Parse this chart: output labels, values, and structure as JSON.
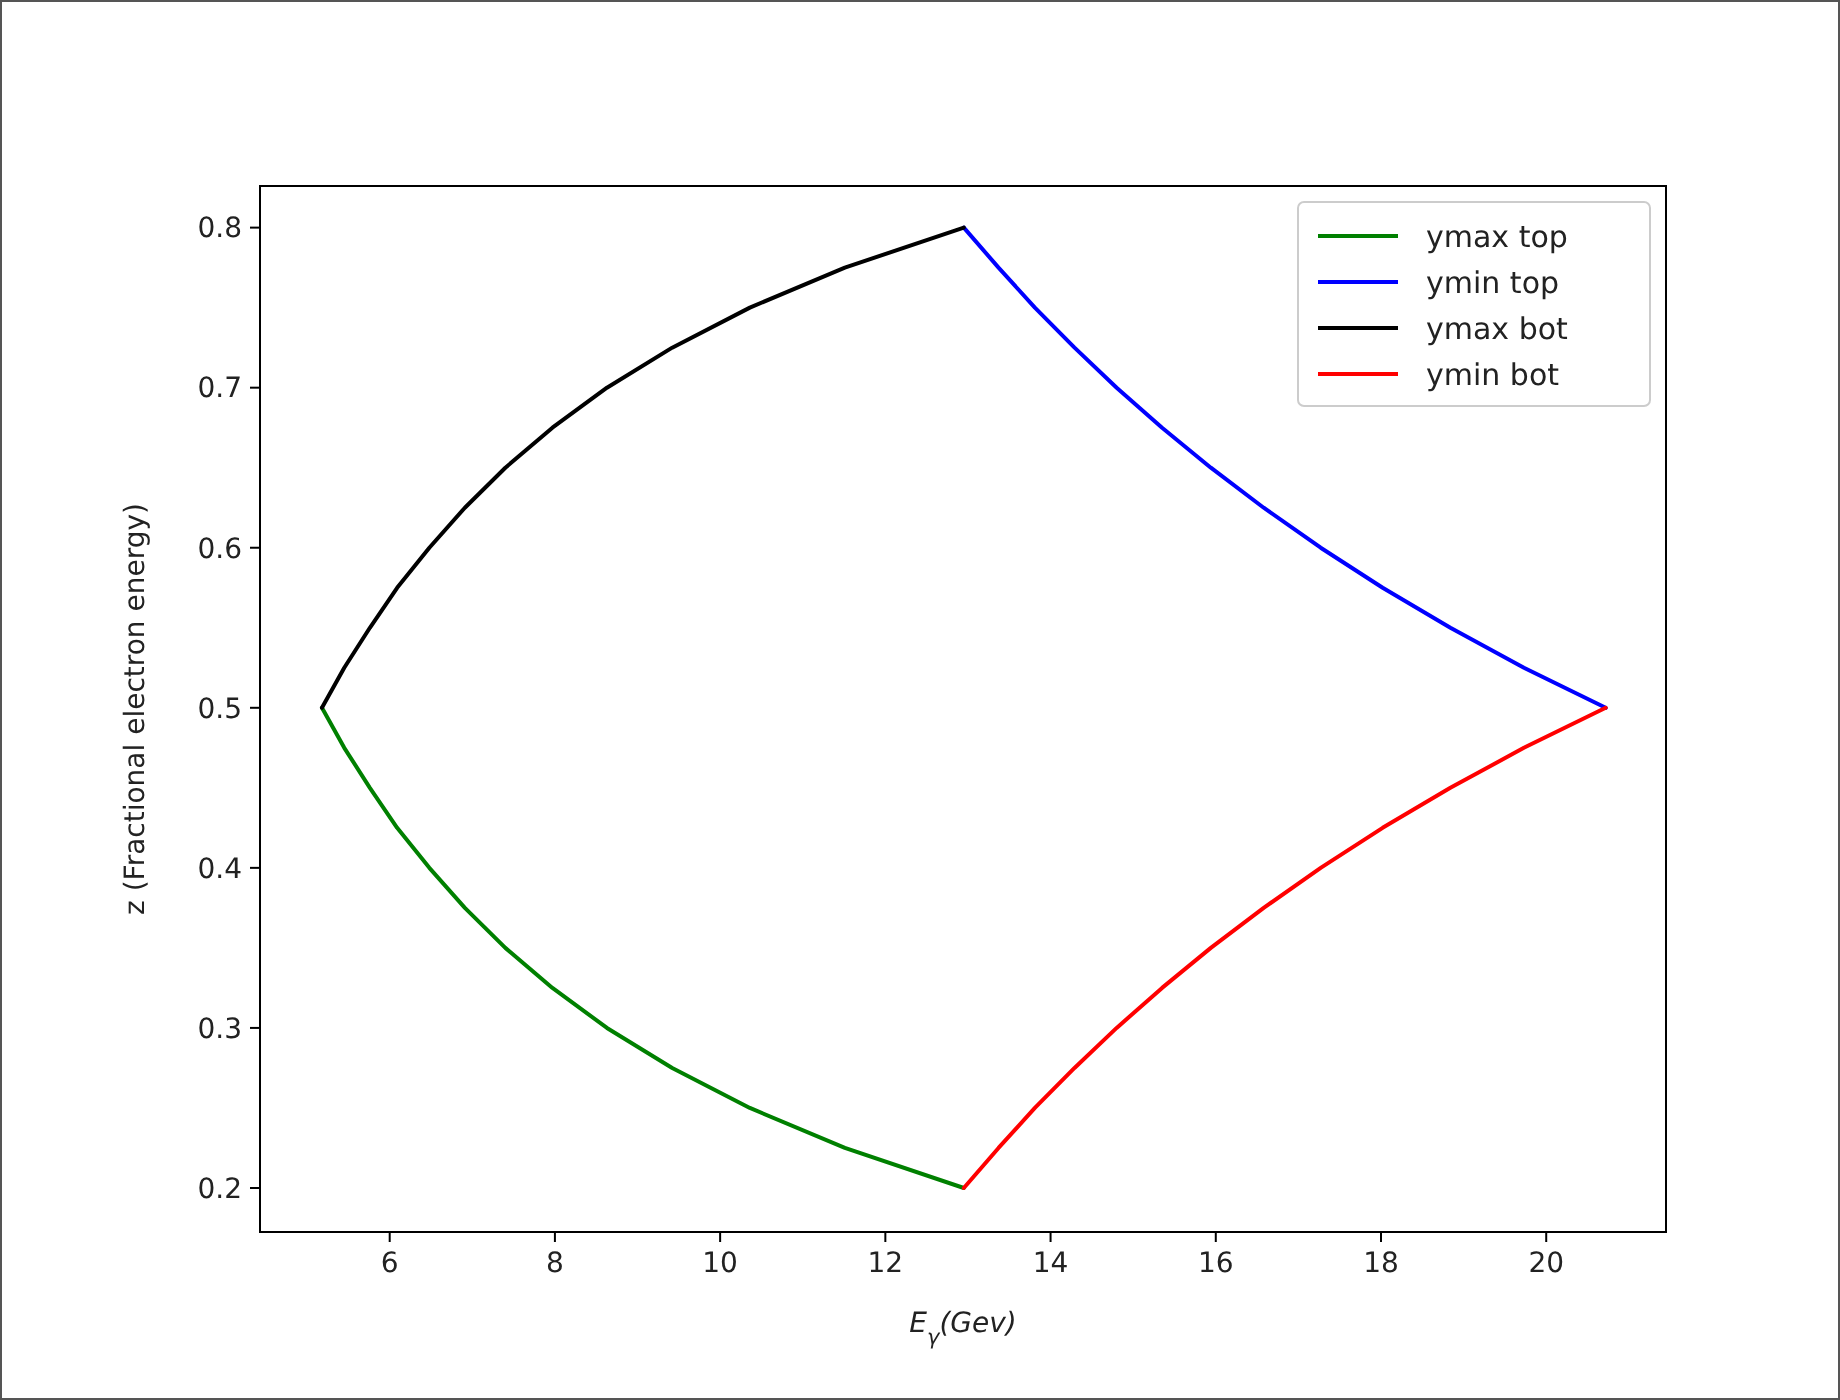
{
  "chart_data": {
    "type": "line",
    "xlabel": "E$_{γ}$(Gev)",
    "ylabel": "z (Fractional electron energy)",
    "xlim": [
      4.43,
      21.45
    ],
    "ylim": [
      0.1725,
      0.826
    ],
    "xticks": [
      6,
      8,
      10,
      12,
      14,
      16,
      18,
      20
    ],
    "yticks": [
      0.2,
      0.3,
      0.4,
      0.5,
      0.6,
      0.7,
      0.8
    ],
    "grid": false,
    "legend": "top right",
    "marker": "none",
    "line_style": "solid",
    "series": [
      {
        "name": "ymax top",
        "color": "#008000",
        "x": [
          5.18,
          5.45,
          5.76,
          6.09,
          6.48,
          6.91,
          7.4,
          7.97,
          8.63,
          9.42,
          10.36,
          11.51,
          12.95
        ],
        "values": [
          0.5,
          0.475,
          0.45,
          0.425,
          0.4,
          0.375,
          0.35,
          0.325,
          0.3,
          0.275,
          0.25,
          0.225,
          0.2
        ]
      },
      {
        "name": "ymin top",
        "color": "#0000ff",
        "x": [
          12.95,
          13.37,
          13.81,
          14.29,
          14.8,
          15.35,
          15.94,
          16.58,
          17.27,
          18.02,
          18.84,
          19.73,
          20.72
        ],
        "values": [
          0.8,
          0.775,
          0.75,
          0.725,
          0.7,
          0.675,
          0.65,
          0.625,
          0.6,
          0.575,
          0.55,
          0.525,
          0.5
        ]
      },
      {
        "name": "ymax bot",
        "color": "#000000",
        "x": [
          5.18,
          5.45,
          5.76,
          6.09,
          6.48,
          6.91,
          7.4,
          7.97,
          8.63,
          9.42,
          10.36,
          11.51,
          12.95
        ],
        "values": [
          0.5,
          0.525,
          0.55,
          0.575,
          0.6,
          0.625,
          0.65,
          0.675,
          0.7,
          0.725,
          0.75,
          0.775,
          0.8
        ]
      },
      {
        "name": "ymin bot",
        "color": "#ff0000",
        "x": [
          12.95,
          13.37,
          13.81,
          14.29,
          14.8,
          15.35,
          15.94,
          16.58,
          17.27,
          18.02,
          18.84,
          19.73,
          20.72
        ],
        "values": [
          0.2,
          0.225,
          0.25,
          0.275,
          0.3,
          0.325,
          0.35,
          0.375,
          0.4,
          0.425,
          0.45,
          0.475,
          0.5
        ]
      }
    ]
  }
}
